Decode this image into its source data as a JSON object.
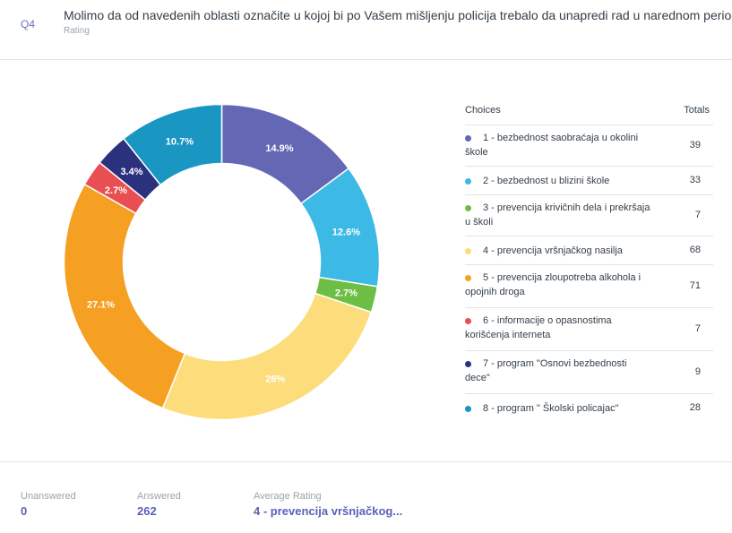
{
  "question": {
    "number": "Q4",
    "title": "Molimo da od navedenih oblasti označite u kojoj bi po Vašem mišljenju policija trebalo da unapredi rad u narednom periodu",
    "type": "Rating"
  },
  "legend": {
    "choices_header": "Choices",
    "totals_header": "Totals"
  },
  "colors": {
    "c1": "#6467b3",
    "c2": "#3cb9e5",
    "c3": "#6cbf44",
    "c4": "#fddd7b",
    "c5": "#f59f23",
    "c6": "#e94e52",
    "c7": "#2c317e",
    "c8": "#1a96c2"
  },
  "chart_data": {
    "type": "pie",
    "donut": true,
    "categories": [
      "1 - bezbednost saobraćaja u okolini škole",
      "2 - bezbednost u blizini škole",
      "3 - prevencija krivičnih dela i prekršaja u školi",
      "4 - prevencija vršnjačkog nasilja",
      "5 - prevencija zloupotreba alkohola i opojnih droga",
      "6 - informacije o opasnostima korišćenja interneta",
      "7 - program \"Osnovi bezbednosti dece\"",
      "8 - program \" Školski policajac\""
    ],
    "values": [
      39,
      33,
      7,
      68,
      71,
      7,
      9,
      28
    ],
    "percent_labels": [
      "14.9%",
      "12.6%",
      "2.7%",
      "26%",
      "27.1%",
      "2.7%",
      "3.4%",
      "10.7%"
    ]
  },
  "footer": {
    "unanswered_label": "Unanswered",
    "unanswered_value": "0",
    "answered_label": "Answered",
    "answered_value": "262",
    "avg_label": "Average Rating",
    "avg_value": "4 - prevencija vršnjačkog..."
  }
}
